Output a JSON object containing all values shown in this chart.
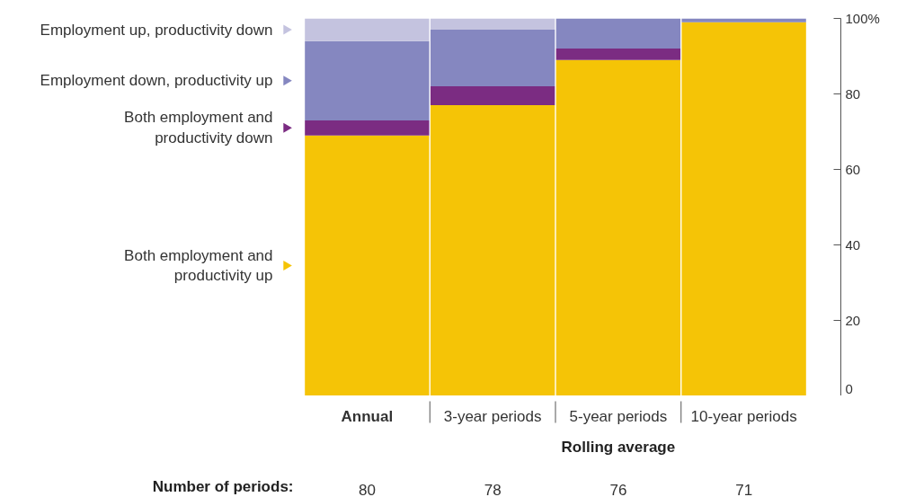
{
  "chart_data": {
    "type": "bar",
    "stacked": true,
    "categories": [
      "Annual",
      "3-year periods",
      "5-year periods",
      "10-year periods"
    ],
    "series": [
      {
        "name": "Both employment and\nproductivity up",
        "color": "#f5c406",
        "values": [
          69,
          77,
          89,
          99
        ]
      },
      {
        "name": "Both employment and\nproductivity down",
        "color": "#7b2c82",
        "values": [
          4,
          5,
          3,
          0
        ]
      },
      {
        "name": "Employment down, productivity up",
        "color": "#8587c0",
        "values": [
          21,
          15,
          8,
          1
        ]
      },
      {
        "name": "Employment up, productivity down",
        "color": "#c4c3df",
        "values": [
          6,
          3,
          0,
          0
        ]
      }
    ],
    "ylim": [
      0,
      100
    ],
    "yticks": [
      0,
      20,
      40,
      60,
      80,
      {
        "value": 100,
        "label": "100%"
      }
    ],
    "grid": false,
    "legend": "left",
    "annotations": [
      "Rolling average",
      "Number of periods:",
      "80",
      "78",
      "76",
      "71"
    ]
  }
}
